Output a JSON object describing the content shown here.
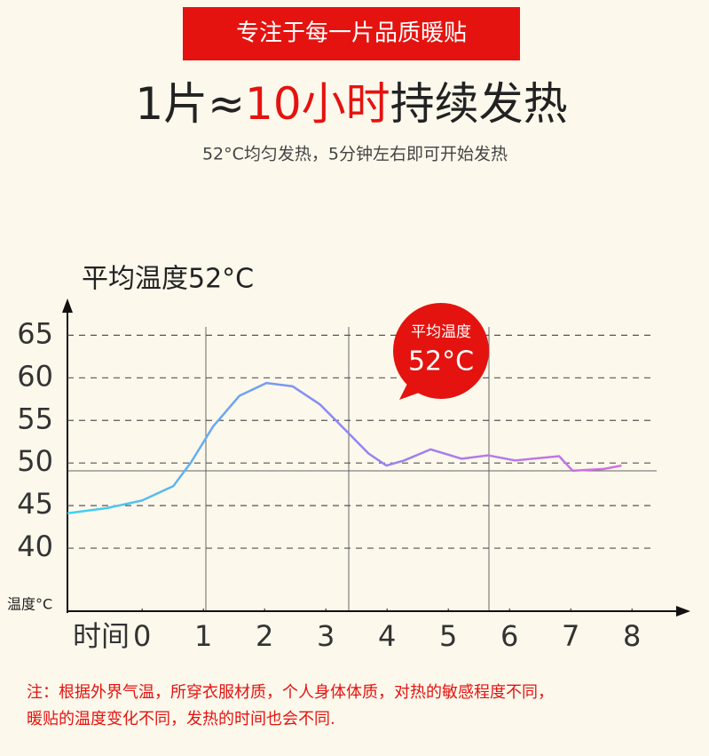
{
  "banner": "专注于每一片品质暖贴",
  "headline": [
    "1片≈",
    "10小时",
    "持续发热"
  ],
  "subtitle": "52°C均匀发热，5分钟左右即可开始发热",
  "badge": {
    "title": "平均温度",
    "value": "52°C"
  },
  "note": [
    "注：根据外界气温，所穿衣服材质，个人身体体质，对热的敏感程度不同，",
    "暖贴的温度变化不同，发热的时间也会不同."
  ],
  "chart_data": {
    "type": "line",
    "title": "平均温度52°C",
    "y_label": "温度°C",
    "x_label": "时间",
    "x": [
      -1.22,
      -0.58,
      0,
      0.51,
      0.8,
      1.16,
      1.59,
      2.03,
      2.46,
      2.9,
      3.33,
      3.7,
      3.99,
      4.28,
      4.71,
      5.22,
      5.65,
      6.09,
      6.81,
      7.03,
      7.54,
      7.83
    ],
    "series": [
      {
        "name": "温度",
        "gradient": [
          "#3ad4f2",
          "#8d86f2",
          "#d46ee0"
        ],
        "values": [
          44.1,
          44.7,
          45.6,
          47.3,
          50.1,
          54.3,
          57.9,
          59.4,
          59.0,
          56.9,
          53.8,
          51.1,
          49.7,
          50.3,
          51.6,
          50.5,
          50.9,
          50.3,
          50.8,
          49.1,
          49.3,
          49.7
        ]
      }
    ],
    "xlim": [
      -1.22,
      8.91
    ],
    "ylim": [
      32.6,
      68.9
    ],
    "xticks": [
      0,
      1,
      2,
      3,
      4,
      5,
      6,
      7,
      8
    ],
    "yticks": [
      40,
      45,
      50,
      55,
      60,
      65
    ],
    "grid": true
  }
}
